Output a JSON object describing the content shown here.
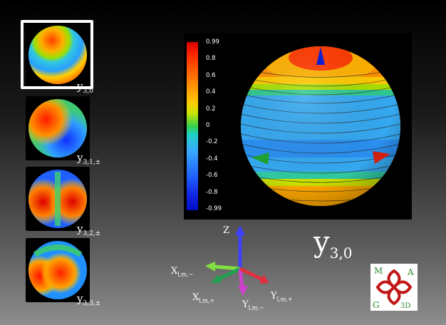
{
  "thumbnails": [
    {
      "base": "y",
      "sub": "3,0"
    },
    {
      "base": "y",
      "sub": "3,1,±"
    },
    {
      "base": "y",
      "sub": "3,2,±"
    },
    {
      "base": "y",
      "sub": "3,3,±"
    }
  ],
  "colorbar": {
    "ticks": [
      "0.99",
      "0.8",
      "0.6",
      "0.4",
      "0.2",
      "0",
      "-0.2",
      "-0.4",
      "-0.6",
      "-0.8",
      "-0.99"
    ]
  },
  "main_label": {
    "base": "y",
    "sub": "3,0"
  },
  "axes": {
    "z": "Z",
    "x_minus": {
      "base": "X",
      "sub": "l,m,−"
    },
    "x_plus": {
      "base": "X",
      "sub": "l,m,+"
    },
    "y_minus": {
      "base": "Y",
      "sub": "l,m,−"
    },
    "y_plus": {
      "base": "Y",
      "sub": "l,m,+"
    }
  },
  "logo": {
    "letters": [
      "M",
      "A",
      "G",
      "3D"
    ]
  }
}
